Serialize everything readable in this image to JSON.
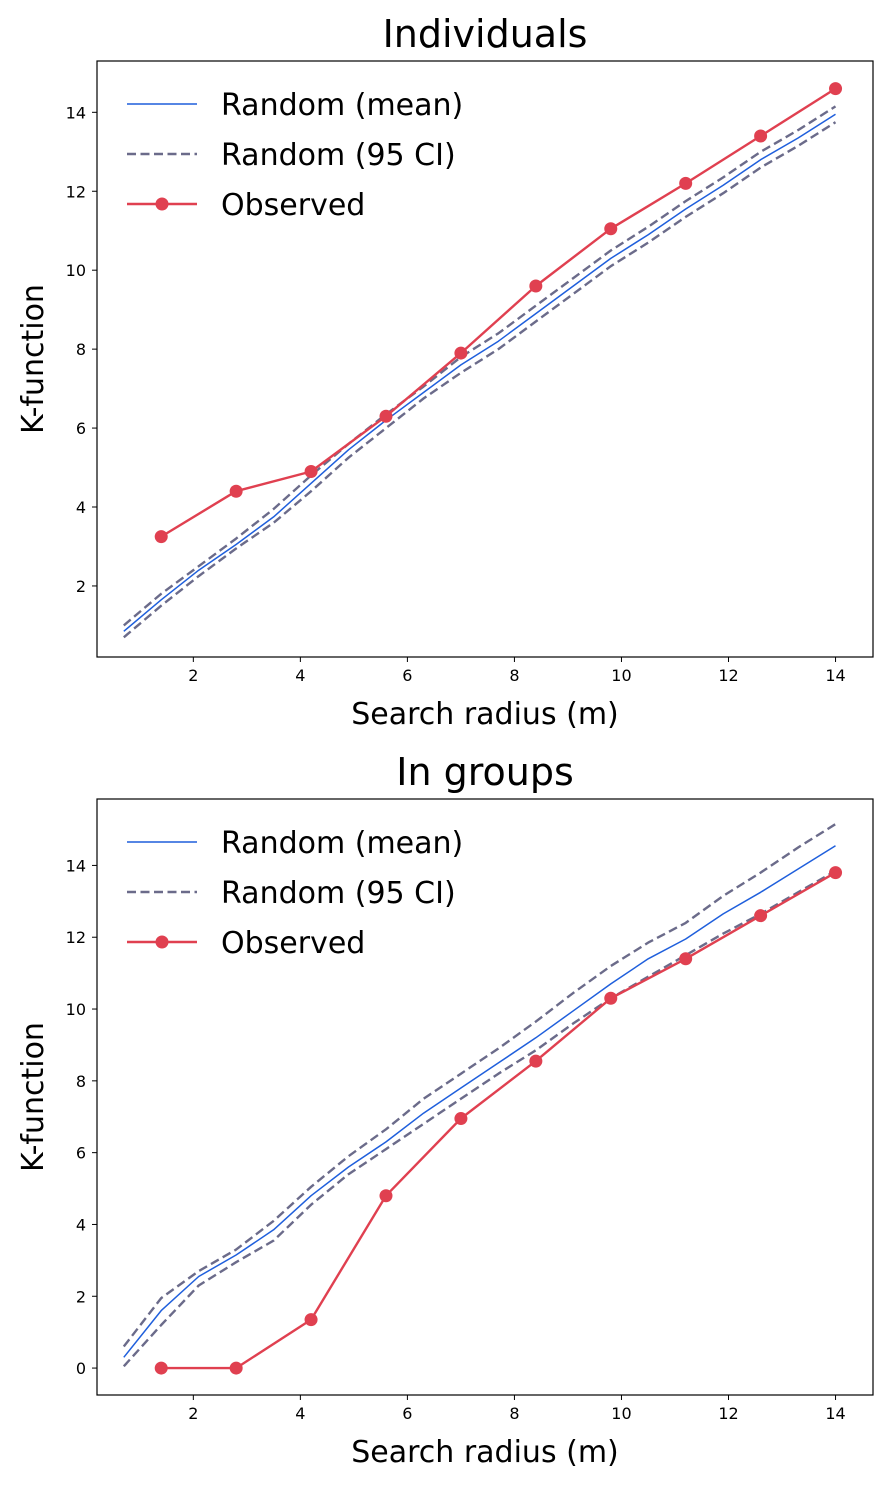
{
  "colors": {
    "mean": "#1f5fdc",
    "ci": "#6b6b8a",
    "observed": "#e04050"
  },
  "chart_data": [
    {
      "type": "line",
      "title": "Individuals",
      "xlabel": "Search radius (m)",
      "ylabel": "K-function",
      "xlim": [
        0.2,
        14.7
      ],
      "ylim": [
        0.2,
        15.3
      ],
      "xticks": [
        2,
        4,
        6,
        8,
        10,
        12,
        14
      ],
      "yticks": [
        2,
        4,
        6,
        8,
        10,
        12,
        14
      ],
      "legend": {
        "position": "top-left",
        "entries": [
          "Random (mean)",
          "Random (95 CI)",
          "Observed"
        ]
      },
      "grid": false,
      "series": [
        {
          "name": "Random (mean)",
          "style": "solid",
          "x": [
            0.7,
            1.4,
            2.1,
            2.8,
            3.5,
            4.2,
            4.9,
            5.6,
            6.3,
            7.0,
            7.7,
            8.4,
            9.1,
            9.8,
            10.5,
            11.2,
            11.9,
            12.6,
            13.3,
            14.0
          ],
          "y": [
            0.85,
            1.65,
            2.4,
            3.05,
            3.75,
            4.6,
            5.45,
            6.2,
            6.9,
            7.6,
            8.2,
            8.9,
            9.6,
            10.3,
            10.9,
            11.55,
            12.15,
            12.8,
            13.35,
            13.95
          ]
        },
        {
          "name": "Random (95 CI)",
          "style": "dashed",
          "x": [
            0.7,
            1.4,
            2.1,
            2.8,
            3.5,
            4.2,
            4.9,
            5.6,
            6.3,
            7.0,
            7.7,
            8.4,
            9.1,
            9.8,
            10.5,
            11.2,
            11.9,
            12.6,
            13.3,
            14.0
          ],
          "y": [
            1.0,
            1.8,
            2.5,
            3.2,
            3.95,
            4.8,
            5.6,
            6.35,
            7.05,
            7.8,
            8.4,
            9.1,
            9.8,
            10.5,
            11.1,
            11.75,
            12.35,
            13.0,
            13.55,
            14.15
          ]
        },
        {
          "name": "Random (95 CI)",
          "style": "dashed",
          "x": [
            0.7,
            1.4,
            2.1,
            2.8,
            3.5,
            4.2,
            4.9,
            5.6,
            6.3,
            7.0,
            7.7,
            8.4,
            9.1,
            9.8,
            10.5,
            11.2,
            11.9,
            12.6,
            13.3,
            14.0
          ],
          "y": [
            0.7,
            1.5,
            2.25,
            2.95,
            3.6,
            4.4,
            5.25,
            6.0,
            6.75,
            7.4,
            8.0,
            8.7,
            9.4,
            10.1,
            10.7,
            11.35,
            11.95,
            12.6,
            13.15,
            13.75
          ]
        },
        {
          "name": "Observed",
          "style": "marker-line",
          "x": [
            1.4,
            2.8,
            4.2,
            5.6,
            7.0,
            8.4,
            9.8,
            11.2,
            12.6,
            14.0
          ],
          "y": [
            3.25,
            4.4,
            4.9,
            6.3,
            7.9,
            9.6,
            11.05,
            12.2,
            13.4,
            14.6
          ]
        }
      ]
    },
    {
      "type": "line",
      "title": "In groups",
      "xlabel": "Search radius (m)",
      "ylabel": "K-function",
      "xlim": [
        0.2,
        14.7
      ],
      "ylim": [
        -0.75,
        15.85
      ],
      "xticks": [
        2,
        4,
        6,
        8,
        10,
        12,
        14
      ],
      "yticks": [
        0,
        2,
        4,
        6,
        8,
        10,
        12,
        14
      ],
      "legend": {
        "position": "top-left",
        "entries": [
          "Random (mean)",
          "Random (95 CI)",
          "Observed"
        ]
      },
      "grid": false,
      "series": [
        {
          "name": "Random (mean)",
          "style": "solid",
          "x": [
            0.7,
            1.4,
            2.1,
            2.8,
            3.5,
            4.2,
            4.9,
            5.6,
            6.3,
            7.0,
            7.7,
            8.4,
            9.1,
            9.8,
            10.5,
            11.2,
            11.9,
            12.6,
            13.3,
            14.0
          ],
          "y": [
            0.3,
            1.6,
            2.55,
            3.15,
            3.85,
            4.8,
            5.6,
            6.3,
            7.1,
            7.8,
            8.5,
            9.2,
            9.95,
            10.7,
            11.4,
            11.95,
            12.65,
            13.25,
            13.9,
            14.55
          ]
        },
        {
          "name": "Random (95 CI)",
          "style": "dashed",
          "x": [
            0.7,
            1.4,
            2.1,
            2.8,
            3.5,
            4.2,
            4.9,
            5.6,
            6.3,
            7.0,
            7.7,
            8.4,
            9.1,
            9.8,
            10.5,
            11.2,
            11.9,
            12.6,
            13.3,
            14.0
          ],
          "y": [
            0.6,
            1.95,
            2.7,
            3.3,
            4.1,
            5.05,
            5.9,
            6.65,
            7.5,
            8.2,
            8.9,
            9.65,
            10.45,
            11.2,
            11.85,
            12.4,
            13.15,
            13.8,
            14.5,
            15.15
          ]
        },
        {
          "name": "Random (95 CI)",
          "style": "dashed",
          "x": [
            0.7,
            1.4,
            2.1,
            2.8,
            3.5,
            4.2,
            4.9,
            5.6,
            6.3,
            7.0,
            7.7,
            8.4,
            9.1,
            9.8,
            10.5,
            11.2,
            11.9,
            12.6,
            13.3,
            14.0
          ],
          "y": [
            0.05,
            1.2,
            2.3,
            2.95,
            3.55,
            4.55,
            5.4,
            6.1,
            6.8,
            7.5,
            8.2,
            8.85,
            9.6,
            10.3,
            10.9,
            11.5,
            12.1,
            12.65,
            13.25,
            13.85
          ]
        },
        {
          "name": "Observed",
          "style": "marker-line",
          "x": [
            1.4,
            2.8,
            4.2,
            5.6,
            7.0,
            8.4,
            9.8,
            11.2,
            12.6,
            14.0
          ],
          "y": [
            0.0,
            0.0,
            1.35,
            4.8,
            6.95,
            8.55,
            10.3,
            11.4,
            12.6,
            13.8
          ]
        }
      ]
    }
  ]
}
